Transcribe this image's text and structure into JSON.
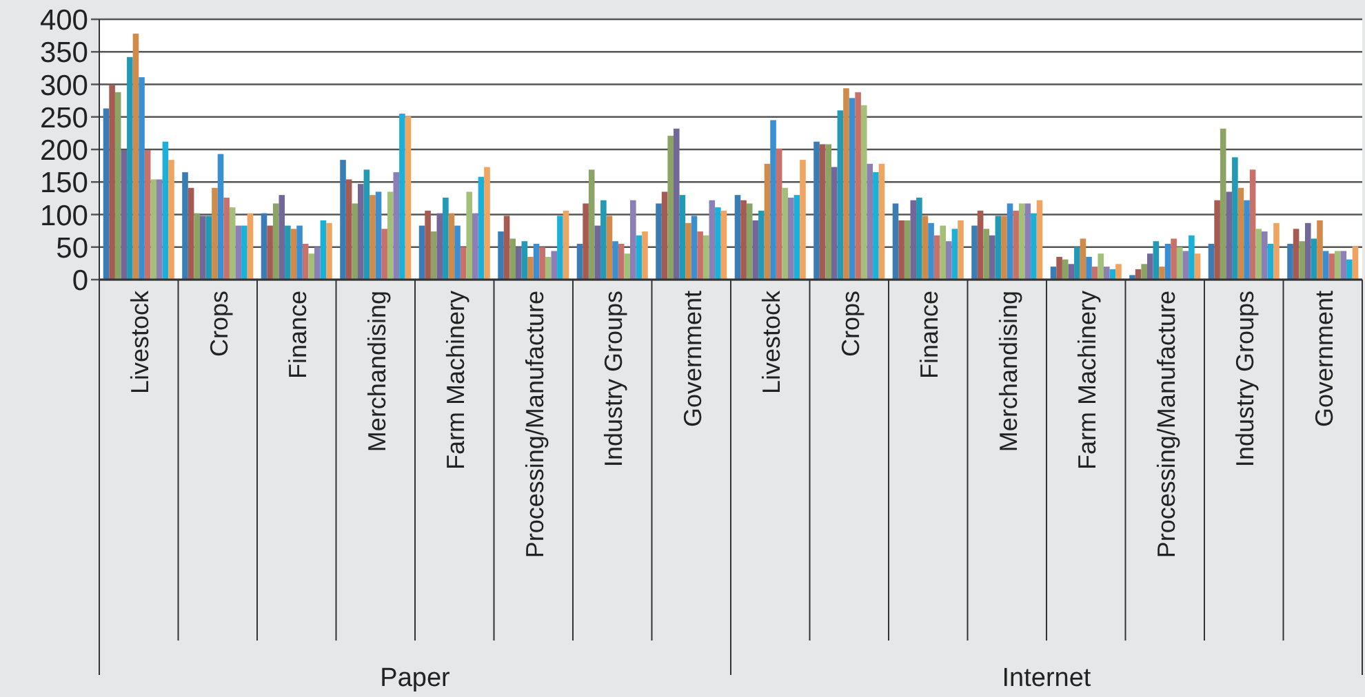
{
  "chart_data": {
    "type": "bar",
    "categories": [
      "Livestock",
      "Crops",
      "Finance",
      "Merchandising",
      "Farm Machinery",
      "Processing/Manufacture",
      "Industry Groups",
      "Government",
      "Livestock",
      "Crops",
      "Finance",
      "Merchandising",
      "Farm Machinery",
      "Processing/Manufacture",
      "Industry Groups",
      "Government"
    ],
    "annotations": [
      "Paper",
      "Internet"
    ],
    "ylim": [
      0,
      400
    ],
    "yticks": [
      0,
      50,
      100,
      150,
      200,
      250,
      300,
      350,
      400
    ],
    "grid": "y",
    "series": [
      {
        "color": "#3a7db5",
        "values": [
          263,
          165,
          102,
          184,
          83,
          74,
          55,
          117,
          130,
          212,
          117,
          83,
          20,
          7,
          55,
          55
        ]
      },
      {
        "color": "#a55b52",
        "values": [
          299,
          141,
          83,
          154,
          106,
          98,
          117,
          135,
          122,
          208,
          91,
          106,
          35,
          16,
          122,
          78
        ]
      },
      {
        "color": "#8ba465",
        "values": [
          288,
          102,
          117,
          117,
          74,
          63,
          169,
          221,
          117,
          208,
          91,
          78,
          31,
          24,
          232,
          59
        ]
      },
      {
        "color": "#73679a",
        "values": [
          199,
          98,
          130,
          147,
          102,
          50,
          83,
          232,
          91,
          173,
          122,
          68,
          24,
          40,
          135,
          87
        ]
      },
      {
        "color": "#2299b5",
        "values": [
          342,
          98,
          83,
          169,
          126,
          59,
          122,
          130,
          106,
          260,
          126,
          98,
          50,
          59,
          188,
          63
        ]
      },
      {
        "color": "#d08b4a",
        "values": [
          378,
          141,
          78,
          130,
          102,
          35,
          98,
          87,
          178,
          294,
          98,
          98,
          63,
          20,
          141,
          91
        ]
      },
      {
        "color": "#3b8fd0",
        "values": [
          311,
          193,
          83,
          135,
          83,
          55,
          59,
          98,
          245,
          279,
          87,
          117,
          35,
          55,
          122,
          44
        ]
      },
      {
        "color": "#c8706a",
        "values": [
          199,
          126,
          55,
          78,
          50,
          50,
          55,
          74,
          201,
          288,
          68,
          106,
          20,
          63,
          169,
          40
        ]
      },
      {
        "color": "#a3bf7a",
        "values": [
          154,
          111,
          40,
          135,
          135,
          35,
          40,
          68,
          141,
          268,
          83,
          117,
          40,
          50,
          78,
          44
        ]
      },
      {
        "color": "#8b7fb5",
        "values": [
          154,
          83,
          50,
          165,
          102,
          44,
          122,
          122,
          126,
          178,
          59,
          117,
          20,
          44,
          74,
          44
        ]
      },
      {
        "color": "#1ab0d8",
        "values": [
          212,
          83,
          91,
          255,
          158,
          98,
          68,
          111,
          130,
          165,
          78,
          102,
          16,
          68,
          55,
          31
        ]
      },
      {
        "color": "#f0a462",
        "values": [
          184,
          102,
          87,
          251,
          173,
          106,
          74,
          106,
          184,
          178,
          91,
          122,
          24,
          40,
          87,
          51
        ]
      }
    ]
  }
}
